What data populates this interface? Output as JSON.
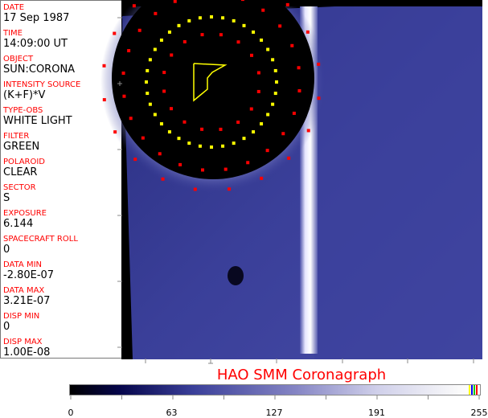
{
  "header_fields": [
    {
      "label": "DATE",
      "value": "17 Sep 1987"
    },
    {
      "label": "TIME",
      "value": "14:09:00 UT"
    },
    {
      "label": "OBJECT",
      "value": "SUN:CORONA"
    },
    {
      "label": "INTENSITY SOURCE",
      "value": "(K+F)*V"
    },
    {
      "label": "TYPE-OBS",
      "value": "WHITE LIGHT"
    },
    {
      "label": "FILTER",
      "value": "GREEN"
    },
    {
      "label": "POLAROID",
      "value": "CLEAR"
    },
    {
      "label": "SECTOR",
      "value": "S"
    },
    {
      "label": "EXPOSURE",
      "value": "6.144"
    },
    {
      "label": "SPACECRAFT ROLL",
      "value": "0"
    },
    {
      "label": "DATA MIN",
      "value": "-2.80E-07"
    },
    {
      "label": "DATA MAX",
      "value": "3.21E-07"
    },
    {
      "label": "DISP MIN",
      "value": "0"
    },
    {
      "label": "DISP MAX",
      "value": "1.00E-08"
    }
  ],
  "title": "HAO   SMM  Coronagraph",
  "colorbar": {
    "tick_labels": [
      "0",
      "63",
      "127",
      "191",
      "255"
    ],
    "end_colors": [
      "#ffff00",
      "#0000ff",
      "#00c000",
      "#ff0000"
    ]
  },
  "colors": {
    "label": "#ff0000",
    "overlay_yellow": "#ffff00",
    "overlay_red": "#ff0000",
    "image_blue": "#3a3f99"
  }
}
